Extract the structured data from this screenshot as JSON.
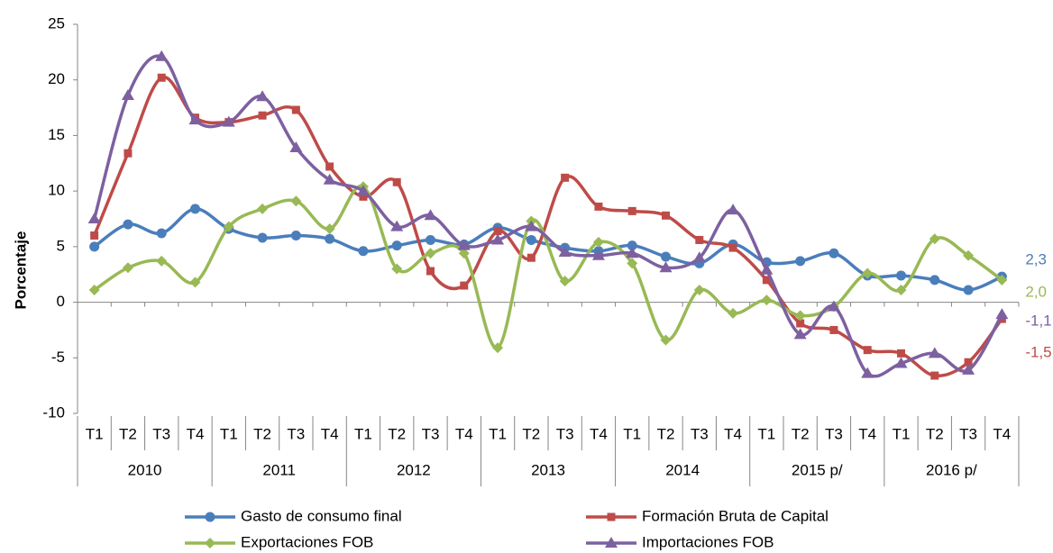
{
  "chart_data": {
    "type": "line",
    "y_label": "Porcentaje",
    "categories": [
      "T1",
      "T2",
      "T3",
      "T4",
      "T1",
      "T2",
      "T3",
      "T4",
      "T1",
      "T2",
      "T3",
      "T4",
      "T1",
      "T2",
      "T3",
      "T4",
      "T1",
      "T2",
      "T3",
      "T4",
      "T1",
      "T2",
      "T3",
      "T4",
      "T1",
      "T2",
      "T3",
      "T4"
    ],
    "years": [
      "2010",
      "2011",
      "2012",
      "2013",
      "2014",
      "2015 p/",
      "2016 p/"
    ],
    "ylim": [
      -10,
      25
    ],
    "yticks": [
      -10,
      -5,
      0,
      5,
      10,
      15,
      20,
      25
    ],
    "series": [
      {
        "name": "Gasto de consumo final",
        "color": "#4a7ebb",
        "marker": "circle",
        "values": [
          5.0,
          7.0,
          6.2,
          8.4,
          6.6,
          5.8,
          6.0,
          5.7,
          4.6,
          5.1,
          5.6,
          5.2,
          6.7,
          5.6,
          4.9,
          4.6,
          5.1,
          4.1,
          3.5,
          5.2,
          3.6,
          3.7,
          4.4,
          2.4,
          2.4,
          2.0,
          1.1,
          2.3
        ],
        "value_labels": [
          null,
          null,
          null,
          null,
          null,
          null,
          null,
          null,
          null,
          null,
          null,
          null,
          null,
          null,
          null,
          null,
          null,
          null,
          null,
          null,
          null,
          null,
          null,
          null,
          null,
          null,
          null,
          "2,3"
        ]
      },
      {
        "name": "Formación Bruta de Capital",
        "color": "#be4b48",
        "marker": "square",
        "values": [
          6.0,
          13.4,
          20.2,
          16.6,
          16.2,
          16.8,
          17.3,
          12.2,
          9.5,
          10.8,
          2.8,
          1.5,
          6.4,
          4.0,
          11.2,
          8.6,
          8.2,
          7.8,
          5.6,
          4.9,
          2.0,
          -1.9,
          -2.5,
          -4.3,
          -4.6,
          -6.6,
          -5.4,
          -1.5
        ],
        "value_labels": [
          null,
          null,
          null,
          null,
          null,
          null,
          null,
          null,
          null,
          null,
          null,
          null,
          null,
          null,
          null,
          null,
          null,
          null,
          null,
          null,
          null,
          null,
          null,
          null,
          null,
          null,
          null,
          "-1,5"
        ]
      },
      {
        "name": "Exportaciones FOB",
        "color": "#98b954",
        "marker": "diamond",
        "values": [
          1.1,
          3.1,
          3.7,
          1.8,
          6.8,
          8.4,
          9.1,
          6.6,
          10.4,
          3.0,
          4.4,
          4.4,
          -4.1,
          7.3,
          1.9,
          5.4,
          3.5,
          -3.4,
          1.1,
          -1.0,
          0.2,
          -1.2,
          -0.4,
          2.6,
          1.1,
          5.7,
          4.2,
          2.0
        ],
        "value_labels": [
          null,
          null,
          null,
          null,
          null,
          null,
          null,
          null,
          null,
          null,
          null,
          null,
          null,
          null,
          null,
          null,
          null,
          null,
          null,
          null,
          null,
          null,
          null,
          null,
          null,
          null,
          null,
          "2,0"
        ]
      },
      {
        "name": "Importaciones FOB",
        "color": "#7d60a0",
        "marker": "triangle",
        "values": [
          7.5,
          18.6,
          22.1,
          16.4,
          16.2,
          18.5,
          13.9,
          11.0,
          10.0,
          6.8,
          7.8,
          5.1,
          5.6,
          6.8,
          4.5,
          4.2,
          4.4,
          3.1,
          4.0,
          8.3,
          2.9,
          -2.9,
          -0.4,
          -6.4,
          -5.5,
          -4.6,
          -6.1,
          -1.1
        ],
        "value_labels": [
          null,
          null,
          null,
          null,
          null,
          null,
          null,
          null,
          null,
          null,
          null,
          null,
          null,
          null,
          null,
          null,
          null,
          null,
          null,
          null,
          null,
          null,
          null,
          null,
          null,
          null,
          null,
          "-1,1"
        ]
      }
    ]
  }
}
